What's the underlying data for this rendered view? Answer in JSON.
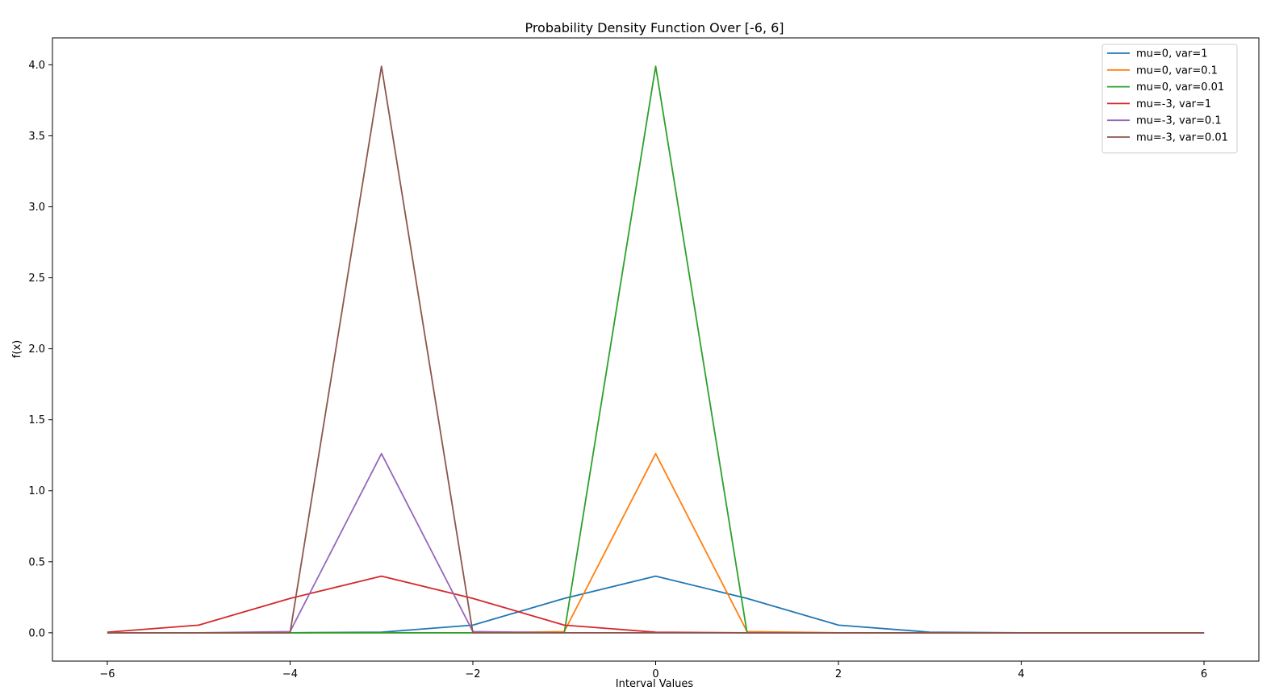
{
  "chart_data": {
    "type": "line",
    "title": "Probability Density Function Over [-6, 6]",
    "xlabel": "Interval Values",
    "ylabel": "f(x)",
    "xlim": [
      -6.6,
      6.6
    ],
    "ylim": [
      -0.1995,
      4.1895
    ],
    "xticks": [
      -6,
      -4,
      -2,
      0,
      2,
      4,
      6
    ],
    "xtick_labels": [
      "−6",
      "−4",
      "−2",
      "0",
      "2",
      "4",
      "6"
    ],
    "yticks": [
      0,
      0.5,
      1,
      1.5,
      2,
      2.5,
      3,
      3.5,
      4
    ],
    "ytick_labels": [
      "0.0",
      "0.5",
      "1.0",
      "1.5",
      "2.0",
      "2.5",
      "3.0",
      "3.5",
      "4.0"
    ],
    "grid": false,
    "legend_position": "top-right",
    "x": [
      -6,
      -5,
      -4,
      -3,
      -2,
      -1,
      0,
      1,
      2,
      3,
      4,
      5,
      6
    ],
    "series": [
      {
        "name": "mu=0, var=1",
        "color": "#1f77b4",
        "values": [
          0.0,
          0.0,
          0.0001,
          0.0044,
          0.054,
          0.242,
          0.399,
          0.242,
          0.054,
          0.0044,
          0.0001,
          0.0,
          0.0
        ]
      },
      {
        "name": "mu=0, var=0.1",
        "color": "#ff7f0e",
        "values": [
          0,
          0,
          0,
          0,
          0,
          0.0085,
          1.2616,
          0.0085,
          0,
          0,
          0,
          0,
          0
        ]
      },
      {
        "name": "mu=0, var=0.01",
        "color": "#2ca02c",
        "values": [
          0,
          0,
          0,
          0,
          0,
          0,
          3.9894,
          0,
          0,
          0,
          0,
          0,
          0
        ]
      },
      {
        "name": "mu=-3, var=1",
        "color": "#d62728",
        "values": [
          0.0044,
          0.054,
          0.242,
          0.399,
          0.242,
          0.054,
          0.0044,
          0.0001,
          0.0,
          0.0,
          0.0,
          0.0,
          0.0
        ]
      },
      {
        "name": "mu=-3, var=0.1",
        "color": "#9467bd",
        "values": [
          0,
          0,
          0.0085,
          1.2616,
          0.0085,
          0,
          0,
          0,
          0,
          0,
          0,
          0,
          0
        ]
      },
      {
        "name": "mu=-3, var=0.01",
        "color": "#8c564b",
        "values": [
          0,
          0,
          0,
          3.9894,
          0,
          0,
          0,
          0,
          0,
          0,
          0,
          0,
          0
        ]
      }
    ]
  }
}
